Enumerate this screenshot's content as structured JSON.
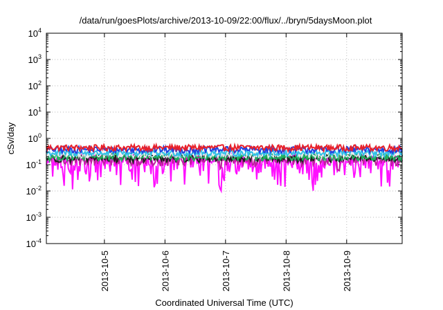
{
  "chart_data": {
    "type": "line",
    "title": "/data/run/goesPlots/archive/2013-10-09/22:00/flux/../bryn/5daysMoon.plot",
    "xlabel": "Coordinated Universal Time (UTC)",
    "ylabel": "cSv/day",
    "y_scale": "log",
    "ylim": [
      0.0001,
      10000
    ],
    "y_ticks": [
      {
        "base": "10",
        "exp": "4",
        "value": 10000
      },
      {
        "base": "10",
        "exp": "3",
        "value": 1000
      },
      {
        "base": "10",
        "exp": "2",
        "value": 100
      },
      {
        "base": "10",
        "exp": "1",
        "value": 10
      },
      {
        "base": "10",
        "exp": "0",
        "value": 1
      },
      {
        "base": "10",
        "exp": "-1",
        "value": 0.1
      },
      {
        "base": "10",
        "exp": "-2",
        "value": 0.01
      },
      {
        "base": "10",
        "exp": "-3",
        "value": 0.001
      },
      {
        "base": "10",
        "exp": "-4",
        "value": 0.0001
      }
    ],
    "xlim": [
      "2013-10-04 01:00",
      "2013-10-09 22:00"
    ],
    "x_ticks": [
      {
        "label": "2013-10-5",
        "date": "2013-10-05 00:00"
      },
      {
        "label": "2013-10-6",
        "date": "2013-10-06 00:00"
      },
      {
        "label": "2013-10-7",
        "date": "2013-10-07 00:00"
      },
      {
        "label": "2013-10-8",
        "date": "2013-10-08 00:00"
      },
      {
        "label": "2013-10-9",
        "date": "2013-10-09 00:00"
      }
    ],
    "grid": true,
    "series": [
      {
        "color": "#e8202a",
        "level": 0.45,
        "noise": 0.1
      },
      {
        "color": "#2040e0",
        "level": 0.38,
        "noise": 0.09
      },
      {
        "color": "#30c0e8",
        "level": 0.28,
        "noise": 0.06
      },
      {
        "color": "#e8e8f0",
        "level": 0.24,
        "noise": 0.05
      },
      {
        "color": "#20b060",
        "level": 0.2,
        "noise": 0.05
      },
      {
        "color": "#202020",
        "level": 0.18,
        "noise": 0.05
      },
      {
        "color": "#c020a0",
        "level": 0.16,
        "noise": 0.06
      },
      {
        "color": "#ff10ff",
        "level": 0.13,
        "noise": 0.1
      }
    ]
  }
}
